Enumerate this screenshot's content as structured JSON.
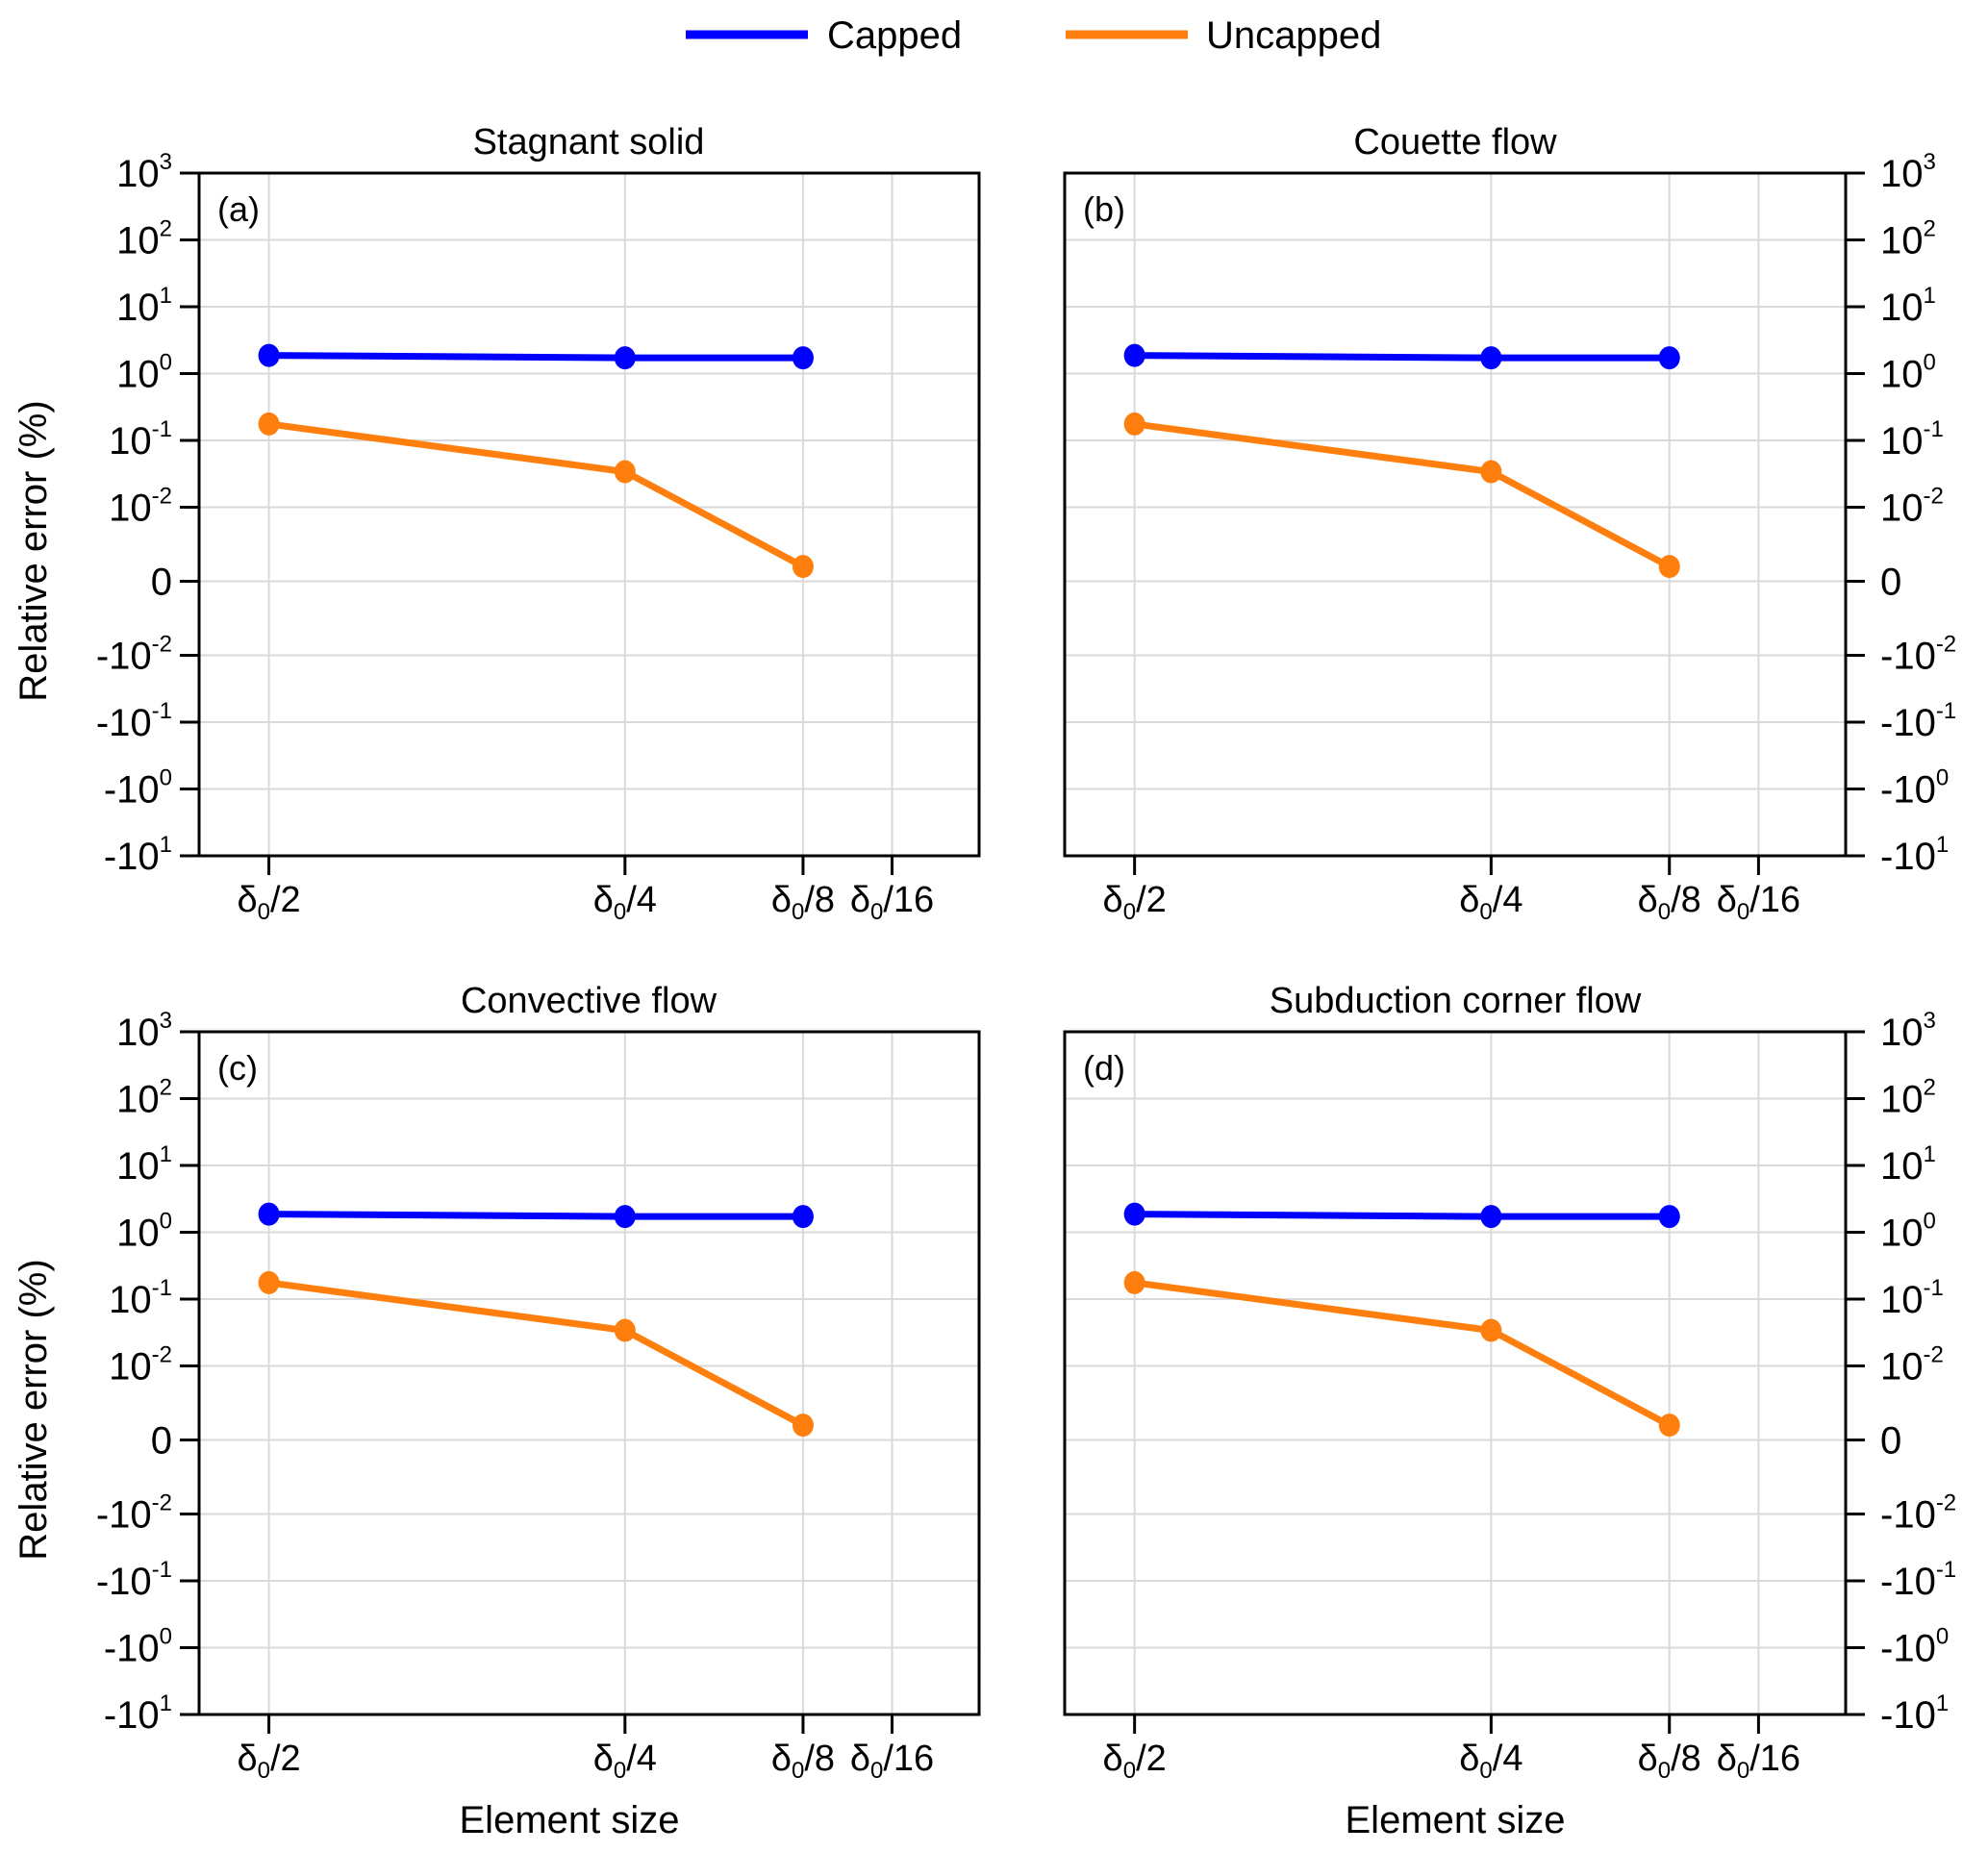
{
  "legend": {
    "items": [
      {
        "label": "Capped",
        "color": "#0000ff"
      },
      {
        "label": "Uncapped",
        "color": "#ff7f0e"
      }
    ]
  },
  "chart_data": [
    {
      "type": "line",
      "panel": "(a)",
      "title": "Stagnant solid",
      "xlabel": "",
      "ylabel": "Relative error (%)",
      "y_axis_side": "left",
      "yscale": "symlog",
      "ylim": [
        -10,
        1000
      ],
      "linthresh": 0.01,
      "yticks": [
        {
          "value": 1000,
          "base": "10",
          "exp": "3"
        },
        {
          "value": 100,
          "base": "10",
          "exp": "2"
        },
        {
          "value": 10,
          "base": "10",
          "exp": "1"
        },
        {
          "value": 1,
          "base": "10",
          "exp": "0"
        },
        {
          "value": 0.1,
          "base": "10",
          "exp": "-1"
        },
        {
          "value": 0.01,
          "base": "10",
          "exp": "-2"
        },
        {
          "value": 0,
          "base": "0",
          "exp": ""
        },
        {
          "value": -0.01,
          "base": "-10",
          "exp": "-2"
        },
        {
          "value": -0.1,
          "base": "-10",
          "exp": "-1"
        },
        {
          "value": -1,
          "base": "-10",
          "exp": "0"
        },
        {
          "value": -10,
          "base": "-10",
          "exp": "1"
        }
      ],
      "x_unit": "fraction of δ0",
      "xlim": [
        0.549,
        0.0014
      ],
      "xticks": [
        {
          "value": 0.5,
          "prefix": "δ",
          "sub": "0",
          "suffix": "/2"
        },
        {
          "value": 0.25,
          "prefix": "δ",
          "sub": "0",
          "suffix": "/4"
        },
        {
          "value": 0.125,
          "prefix": "δ",
          "sub": "0",
          "suffix": "/8"
        },
        {
          "value": 0.0625,
          "prefix": "δ",
          "sub": "0",
          "suffix": "/16"
        }
      ],
      "grid": true,
      "series": [
        {
          "name": "Capped",
          "color": "#0000ff",
          "x": [
            0.5,
            0.25,
            0.125
          ],
          "values": [
            1.87,
            1.72,
            1.72
          ]
        },
        {
          "name": "Uncapped",
          "color": "#ff7f0e",
          "x": [
            0.5,
            0.25,
            0.125
          ],
          "values": [
            0.176,
            0.034,
            0.002
          ]
        }
      ]
    },
    {
      "type": "line",
      "panel": "(b)",
      "title": "Couette flow",
      "xlabel": "",
      "ylabel": "",
      "y_axis_side": "right",
      "yscale": "symlog",
      "ylim": [
        -10,
        1000
      ],
      "linthresh": 0.01,
      "yticks": [
        {
          "value": 1000,
          "base": "10",
          "exp": "3"
        },
        {
          "value": 100,
          "base": "10",
          "exp": "2"
        },
        {
          "value": 10,
          "base": "10",
          "exp": "1"
        },
        {
          "value": 1,
          "base": "10",
          "exp": "0"
        },
        {
          "value": 0.1,
          "base": "10",
          "exp": "-1"
        },
        {
          "value": 0.01,
          "base": "10",
          "exp": "-2"
        },
        {
          "value": 0,
          "base": "0",
          "exp": ""
        },
        {
          "value": -0.01,
          "base": "-10",
          "exp": "-2"
        },
        {
          "value": -0.1,
          "base": "-10",
          "exp": "-1"
        },
        {
          "value": -1,
          "base": "-10",
          "exp": "0"
        },
        {
          "value": -10,
          "base": "-10",
          "exp": "1"
        }
      ],
      "x_unit": "fraction of δ0",
      "xlim": [
        0.549,
        0.0014
      ],
      "xticks": [
        {
          "value": 0.5,
          "prefix": "δ",
          "sub": "0",
          "suffix": "/2"
        },
        {
          "value": 0.25,
          "prefix": "δ",
          "sub": "0",
          "suffix": "/4"
        },
        {
          "value": 0.125,
          "prefix": "δ",
          "sub": "0",
          "suffix": "/8"
        },
        {
          "value": 0.0625,
          "prefix": "δ",
          "sub": "0",
          "suffix": "/16"
        }
      ],
      "grid": true,
      "series": [
        {
          "name": "Capped",
          "color": "#0000ff",
          "x": [
            0.5,
            0.25,
            0.125
          ],
          "values": [
            1.87,
            1.72,
            1.72
          ]
        },
        {
          "name": "Uncapped",
          "color": "#ff7f0e",
          "x": [
            0.5,
            0.25,
            0.125
          ],
          "values": [
            0.176,
            0.034,
            0.002
          ]
        }
      ]
    },
    {
      "type": "line",
      "panel": "(c)",
      "title": "Convective flow",
      "xlabel": "Element size",
      "ylabel": "Relative error (%)",
      "y_axis_side": "left",
      "yscale": "symlog",
      "ylim": [
        -10,
        1000
      ],
      "linthresh": 0.01,
      "yticks": [
        {
          "value": 1000,
          "base": "10",
          "exp": "3"
        },
        {
          "value": 100,
          "base": "10",
          "exp": "2"
        },
        {
          "value": 10,
          "base": "10",
          "exp": "1"
        },
        {
          "value": 1,
          "base": "10",
          "exp": "0"
        },
        {
          "value": 0.1,
          "base": "10",
          "exp": "-1"
        },
        {
          "value": 0.01,
          "base": "10",
          "exp": "-2"
        },
        {
          "value": 0,
          "base": "0",
          "exp": ""
        },
        {
          "value": -0.01,
          "base": "-10",
          "exp": "-2"
        },
        {
          "value": -0.1,
          "base": "-10",
          "exp": "-1"
        },
        {
          "value": -1,
          "base": "-10",
          "exp": "0"
        },
        {
          "value": -10,
          "base": "-10",
          "exp": "1"
        }
      ],
      "x_unit": "fraction of δ0",
      "xlim": [
        0.549,
        0.0014
      ],
      "xticks": [
        {
          "value": 0.5,
          "prefix": "δ",
          "sub": "0",
          "suffix": "/2"
        },
        {
          "value": 0.25,
          "prefix": "δ",
          "sub": "0",
          "suffix": "/4"
        },
        {
          "value": 0.125,
          "prefix": "δ",
          "sub": "0",
          "suffix": "/8"
        },
        {
          "value": 0.0625,
          "prefix": "δ",
          "sub": "0",
          "suffix": "/16"
        }
      ],
      "grid": true,
      "series": [
        {
          "name": "Capped",
          "color": "#0000ff",
          "x": [
            0.5,
            0.25,
            0.125
          ],
          "values": [
            1.87,
            1.72,
            1.72
          ]
        },
        {
          "name": "Uncapped",
          "color": "#ff7f0e",
          "x": [
            0.5,
            0.25,
            0.125
          ],
          "values": [
            0.176,
            0.034,
            0.002
          ]
        }
      ]
    },
    {
      "type": "line",
      "panel": "(d)",
      "title": "Subduction corner flow",
      "xlabel": "Element size",
      "ylabel": "",
      "y_axis_side": "right",
      "yscale": "symlog",
      "ylim": [
        -10,
        1000
      ],
      "linthresh": 0.01,
      "yticks": [
        {
          "value": 1000,
          "base": "10",
          "exp": "3"
        },
        {
          "value": 100,
          "base": "10",
          "exp": "2"
        },
        {
          "value": 10,
          "base": "10",
          "exp": "1"
        },
        {
          "value": 1,
          "base": "10",
          "exp": "0"
        },
        {
          "value": 0.1,
          "base": "10",
          "exp": "-1"
        },
        {
          "value": 0.01,
          "base": "10",
          "exp": "-2"
        },
        {
          "value": 0,
          "base": "0",
          "exp": ""
        },
        {
          "value": -0.01,
          "base": "-10",
          "exp": "-2"
        },
        {
          "value": -0.1,
          "base": "-10",
          "exp": "-1"
        },
        {
          "value": -1,
          "base": "-10",
          "exp": "0"
        },
        {
          "value": -10,
          "base": "-10",
          "exp": "1"
        }
      ],
      "x_unit": "fraction of δ0",
      "xlim": [
        0.549,
        0.0014
      ],
      "xticks": [
        {
          "value": 0.5,
          "prefix": "δ",
          "sub": "0",
          "suffix": "/2"
        },
        {
          "value": 0.25,
          "prefix": "δ",
          "sub": "0",
          "suffix": "/4"
        },
        {
          "value": 0.125,
          "prefix": "δ",
          "sub": "0",
          "suffix": "/8"
        },
        {
          "value": 0.0625,
          "prefix": "δ",
          "sub": "0",
          "suffix": "/16"
        }
      ],
      "grid": true,
      "series": [
        {
          "name": "Capped",
          "color": "#0000ff",
          "x": [
            0.5,
            0.25,
            0.125
          ],
          "values": [
            1.87,
            1.72,
            1.72
          ]
        },
        {
          "name": "Uncapped",
          "color": "#ff7f0e",
          "x": [
            0.5,
            0.25,
            0.125
          ],
          "values": [
            0.176,
            0.034,
            0.002
          ]
        }
      ]
    }
  ]
}
